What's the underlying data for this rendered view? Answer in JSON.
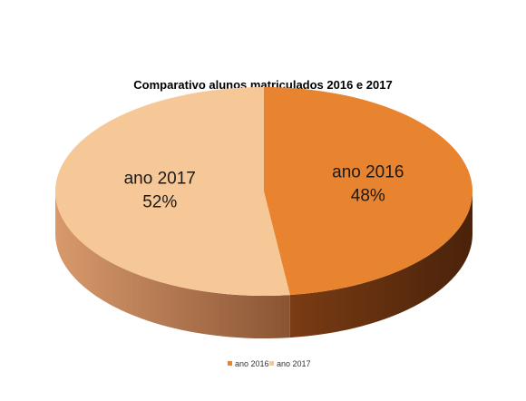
{
  "chart_data": {
    "type": "pie",
    "title": "Comparativo alunos matriculados 2016 e 2017",
    "slices": [
      {
        "label": "ano 2016",
        "value": 48,
        "value_label": "48%",
        "color": "#E8832F"
      },
      {
        "label": "ano 2017",
        "value": 52,
        "value_label": "52%",
        "color": "#F7C897"
      }
    ],
    "legend": {
      "position": "bottom",
      "entries": [
        {
          "label": "ano 2016",
          "color": "#E8832F"
        },
        {
          "label": "ano 2017",
          "color": "#F7C897"
        }
      ]
    },
    "style": "3d"
  }
}
